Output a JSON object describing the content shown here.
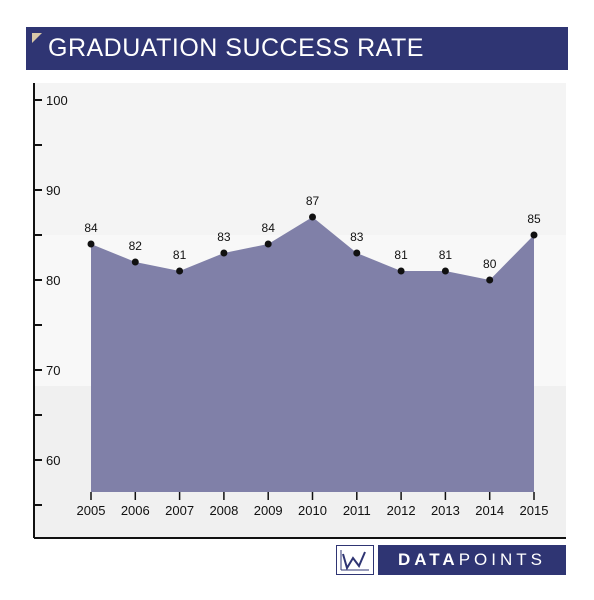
{
  "header": {
    "title": "GRADUATION SUCCESS RATE"
  },
  "logo": {
    "word_bold": "DATA",
    "word_light": "POINTS"
  },
  "chart_data": {
    "type": "area",
    "title": "GRADUATION SUCCESS RATE",
    "xlabel": "",
    "ylabel": "",
    "categories": [
      "2005",
      "2006",
      "2007",
      "2008",
      "2009",
      "2010",
      "2011",
      "2012",
      "2013",
      "2014",
      "2015"
    ],
    "values": [
      84,
      82,
      81,
      83,
      84,
      87,
      83,
      81,
      81,
      80,
      85
    ],
    "y_ticks": [
      60,
      70,
      80,
      90,
      100
    ],
    "ylim": [
      55,
      102
    ],
    "fill_color": "#8080a8",
    "band_colors": [
      "#f4f4f4",
      "#f8f8f8",
      "#f0f0f0"
    ],
    "grid": false
  }
}
